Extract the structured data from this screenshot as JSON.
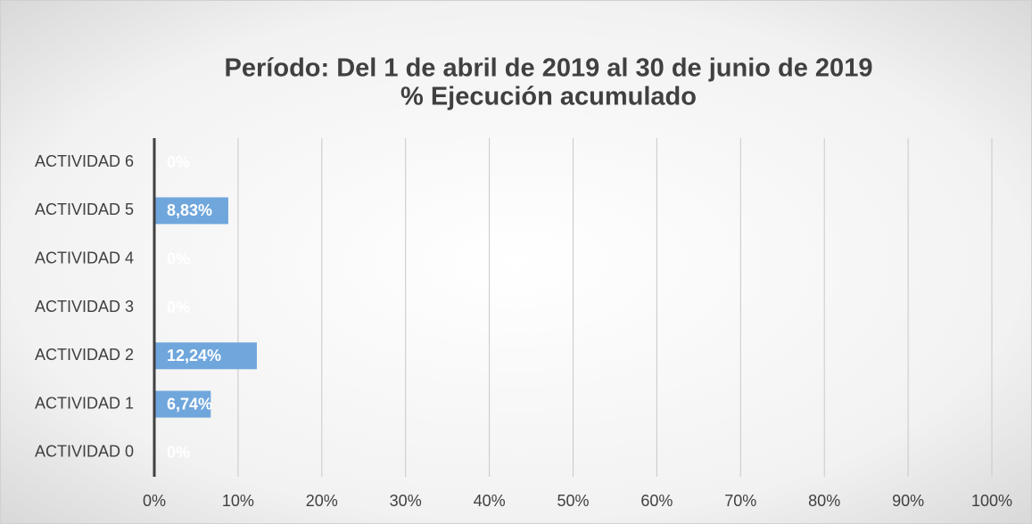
{
  "chart_data": {
    "type": "barh",
    "title": [
      "Período: Del 1 de abril de 2019 al 30 de junio  de 2019",
      "% Ejecución acumulado"
    ],
    "categories": [
      "ACTIVIDAD 0",
      "ACTIVIDAD 1",
      "ACTIVIDAD 2",
      "ACTIVIDAD 3",
      "ACTIVIDAD 4",
      "ACTIVIDAD 5",
      "ACTIVIDAD 6"
    ],
    "values": [
      0,
      6.74,
      12.24,
      0,
      0,
      8.83,
      0
    ],
    "value_labels": [
      "0%",
      "6,74%",
      "12,24%",
      "0%",
      "0%",
      "8,83%",
      "0%"
    ],
    "color": "#6fa6dc",
    "xlim": [
      0,
      100
    ],
    "xticks": [
      {
        "value": 0,
        "label": "0%"
      },
      {
        "value": 10,
        "label": "10%"
      },
      {
        "value": 20,
        "label": "20%"
      },
      {
        "value": 30,
        "label": "30%"
      },
      {
        "value": 40,
        "label": "40%"
      },
      {
        "value": 50,
        "label": "50%"
      },
      {
        "value": 60,
        "label": "60%"
      },
      {
        "value": 70,
        "label": "70%"
      },
      {
        "value": 80,
        "label": "80%"
      },
      {
        "value": 90,
        "label": "90%"
      },
      {
        "value": 100,
        "label": "100%"
      }
    ],
    "grid": true
  }
}
